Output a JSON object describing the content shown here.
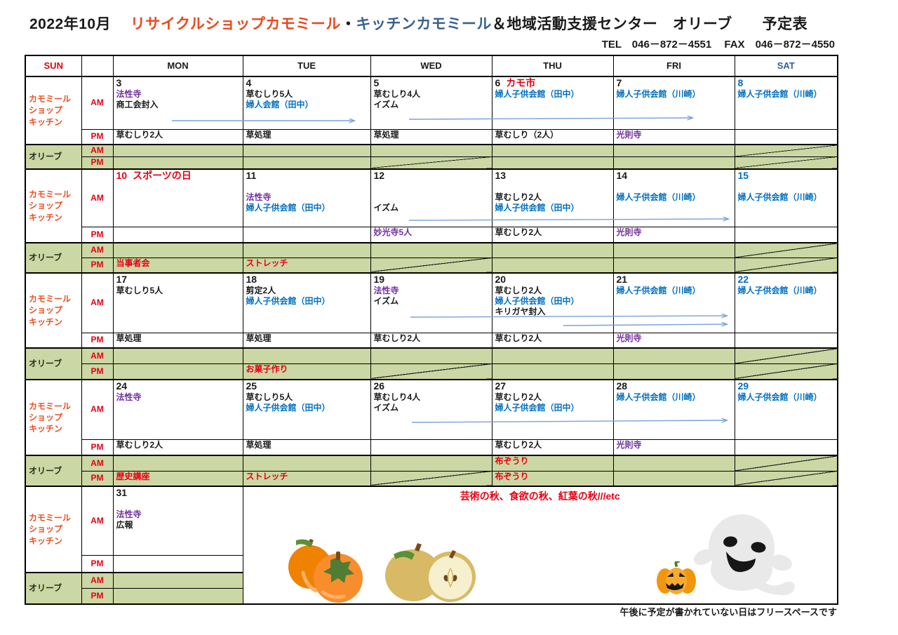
{
  "title": {
    "date": "2022年10月",
    "org_red": "リサイクルショップカモミール",
    "dot": "・",
    "org_blue": "キッチンカモミール",
    "org_rest": "＆地域活動支援センター　オリーブ　　予定表"
  },
  "contact": {
    "tel": "TEL　046－872－4551",
    "fax": "FAX　046－872－4550"
  },
  "header_days": [
    {
      "label": "SUN",
      "color": "h-red"
    },
    {
      "label": "MON",
      "color": ""
    },
    {
      "label": "TUE",
      "color": ""
    },
    {
      "label": "WED",
      "color": ""
    },
    {
      "label": "THU",
      "color": ""
    },
    {
      "label": "FRI",
      "color": ""
    },
    {
      "label": "SAT",
      "color": "h-blue"
    }
  ],
  "row_labels": {
    "camomile": [
      "カモミール",
      "ショップ",
      "キッチン"
    ],
    "olive": "オリーブ",
    "am": "AM",
    "pm": "PM"
  },
  "weeks": [
    {
      "am": [
        {
          "d": "3",
          "dc": "black",
          "lines": [
            {
              "t": "法性寺",
              "c": "purple"
            },
            {
              "t": "商工会封入",
              "c": "black"
            }
          ]
        },
        {
          "d": "4",
          "dc": "black",
          "lines": [
            {
              "t": "草むしり5人",
              "c": "black"
            },
            {
              "t": "婦人会館（田中）",
              "c": "blue"
            }
          ]
        },
        {
          "d": "5",
          "dc": "black",
          "lines": [
            {
              "t": "草むしり4人",
              "c": "black"
            },
            {
              "t": "イズム",
              "c": "black"
            }
          ]
        },
        {
          "d": "6",
          "dc": "black",
          "n": "カモ市",
          "nc": "red",
          "lines": [
            {
              "t": "婦人子供会館（田中）",
              "c": "blue"
            }
          ]
        },
        {
          "d": "7",
          "dc": "black",
          "lines": [
            {
              "t": "婦人子供会館（川崎）",
              "c": "blue"
            }
          ]
        },
        {
          "d": "8",
          "dc": "blue",
          "lines": [
            {
              "t": "婦人子供会館（川崎）",
              "c": "blue"
            }
          ]
        }
      ],
      "pm": [
        {
          "lines": [
            {
              "t": "草むしり2人",
              "c": "black"
            }
          ]
        },
        {
          "lines": [
            {
              "t": "草処理",
              "c": "black"
            }
          ]
        },
        {
          "lines": [
            {
              "t": "草処理",
              "c": "black"
            }
          ]
        },
        {
          "lines": [
            {
              "t": "草むしり（2人）",
              "c": "black"
            }
          ]
        },
        {
          "lines": [
            {
              "t": "光則寺",
              "c": "purple"
            }
          ]
        },
        {
          "lines": []
        }
      ],
      "olive_am": [
        {
          "lines": []
        },
        {
          "lines": []
        },
        {
          "lines": []
        },
        {
          "lines": []
        },
        {
          "lines": []
        },
        {
          "lines": [],
          "slash": true
        }
      ],
      "olive_pm": [
        {
          "lines": []
        },
        {
          "lines": []
        },
        {
          "lines": [],
          "slash": true
        },
        {
          "lines": []
        },
        {
          "lines": []
        },
        {
          "lines": [],
          "slash": true
        }
      ]
    },
    {
      "am": [
        {
          "d": "10",
          "dc": "red",
          "n": "スポーツの日",
          "nc": "red",
          "lines": []
        },
        {
          "d": "11",
          "dc": "black",
          "lines": [
            {
              "t": "",
              "c": "black"
            },
            {
              "t": "法性寺",
              "c": "purple"
            },
            {
              "t": "婦人子供会館（田中）",
              "c": "blue"
            }
          ]
        },
        {
          "d": "12",
          "dc": "black",
          "lines": [
            {
              "t": "",
              "c": "black"
            },
            {
              "t": "",
              "c": "black"
            },
            {
              "t": "イズム",
              "c": "black"
            }
          ]
        },
        {
          "d": "13",
          "dc": "black",
          "lines": [
            {
              "t": "",
              "c": "black"
            },
            {
              "t": "草むしり2人",
              "c": "black"
            },
            {
              "t": "婦人子供会館（田中）",
              "c": "blue"
            }
          ]
        },
        {
          "d": "14",
          "dc": "black",
          "lines": [
            {
              "t": "",
              "c": "black"
            },
            {
              "t": "婦人子供会館（川崎）",
              "c": "blue"
            }
          ]
        },
        {
          "d": "15",
          "dc": "blue",
          "lines": [
            {
              "t": "",
              "c": "black"
            },
            {
              "t": "婦人子供会館（川崎）",
              "c": "blue"
            }
          ]
        }
      ],
      "pm": [
        {
          "lines": []
        },
        {
          "lines": []
        },
        {
          "lines": [
            {
              "t": "妙光寺5人",
              "c": "purple"
            }
          ]
        },
        {
          "lines": [
            {
              "t": "草むしり2人",
              "c": "black"
            }
          ]
        },
        {
          "lines": [
            {
              "t": "光則寺",
              "c": "purple"
            }
          ]
        },
        {
          "lines": []
        }
      ],
      "olive_am": [
        {
          "lines": []
        },
        {
          "lines": []
        },
        {
          "lines": []
        },
        {
          "lines": []
        },
        {
          "lines": []
        },
        {
          "lines": [],
          "slash": true
        }
      ],
      "olive_pm": [
        {
          "lines": [
            {
              "t": "当事者会",
              "c": "red"
            }
          ]
        },
        {
          "lines": [
            {
              "t": "ストレッチ",
              "c": "red"
            }
          ]
        },
        {
          "lines": [],
          "slash": true
        },
        {
          "lines": []
        },
        {
          "lines": []
        },
        {
          "lines": [],
          "slash": true
        }
      ]
    },
    {
      "am": [
        {
          "d": "17",
          "dc": "black",
          "lines": [
            {
              "t": "草むしり5人",
              "c": "black"
            }
          ]
        },
        {
          "d": "18",
          "dc": "black",
          "lines": [
            {
              "t": "剪定2人",
              "c": "black"
            },
            {
              "t": "婦人子供会館（田中）",
              "c": "blue"
            }
          ]
        },
        {
          "d": "19",
          "dc": "black",
          "lines": [
            {
              "t": "法性寺",
              "c": "purple"
            },
            {
              "t": "イズム",
              "c": "black"
            }
          ]
        },
        {
          "d": "20",
          "dc": "black",
          "lines": [
            {
              "t": "草むしり2人",
              "c": "black"
            },
            {
              "t": "婦人子供会館（田中）",
              "c": "blue"
            },
            {
              "t": "キリガヤ封入",
              "c": "black"
            }
          ]
        },
        {
          "d": "21",
          "dc": "black",
          "lines": [
            {
              "t": "婦人子供会館（川崎）",
              "c": "blue"
            }
          ]
        },
        {
          "d": "22",
          "dc": "blue",
          "lines": [
            {
              "t": "婦人子供会館（川崎）",
              "c": "blue"
            }
          ]
        }
      ],
      "pm": [
        {
          "lines": [
            {
              "t": "草処理",
              "c": "black"
            }
          ]
        },
        {
          "lines": [
            {
              "t": "草処理",
              "c": "black"
            }
          ]
        },
        {
          "lines": [
            {
              "t": "草むしり2人",
              "c": "black"
            }
          ]
        },
        {
          "lines": [
            {
              "t": "草むしり2人",
              "c": "black"
            }
          ]
        },
        {
          "lines": [
            {
              "t": "光則寺",
              "c": "purple"
            }
          ]
        },
        {
          "lines": []
        }
      ],
      "olive_am": [
        {
          "lines": []
        },
        {
          "lines": []
        },
        {
          "lines": []
        },
        {
          "lines": []
        },
        {
          "lines": []
        },
        {
          "lines": [],
          "slash": true
        }
      ],
      "olive_pm": [
        {
          "lines": []
        },
        {
          "lines": [
            {
              "t": "お菓子作り",
              "c": "red"
            }
          ]
        },
        {
          "lines": [],
          "slash": true
        },
        {
          "lines": []
        },
        {
          "lines": []
        },
        {
          "lines": [],
          "slash": true
        }
      ]
    },
    {
      "am": [
        {
          "d": "24",
          "dc": "black",
          "lines": [
            {
              "t": "法性寺",
              "c": "purple"
            }
          ]
        },
        {
          "d": "25",
          "dc": "black",
          "lines": [
            {
              "t": "草むしり5人",
              "c": "black"
            },
            {
              "t": "婦人子供会館（田中）",
              "c": "blue"
            }
          ]
        },
        {
          "d": "26",
          "dc": "black",
          "lines": [
            {
              "t": "草むしり4人",
              "c": "black"
            },
            {
              "t": "イズム",
              "c": "black"
            }
          ]
        },
        {
          "d": "27",
          "dc": "black",
          "lines": [
            {
              "t": "草むしり2人",
              "c": "black"
            },
            {
              "t": "婦人子供会館（田中）",
              "c": "blue"
            }
          ]
        },
        {
          "d": "28",
          "dc": "black",
          "lines": [
            {
              "t": "婦人子供会館（川崎）",
              "c": "blue"
            }
          ]
        },
        {
          "d": "29",
          "dc": "blue",
          "lines": [
            {
              "t": "婦人子供会館（川崎）",
              "c": "blue"
            }
          ]
        }
      ],
      "pm": [
        {
          "lines": [
            {
              "t": "草むしり2人",
              "c": "black"
            }
          ]
        },
        {
          "lines": [
            {
              "t": "草処理",
              "c": "black"
            }
          ]
        },
        {
          "lines": []
        },
        {
          "lines": [
            {
              "t": "草むしり2人",
              "c": "black"
            }
          ]
        },
        {
          "lines": [
            {
              "t": "光則寺",
              "c": "purple"
            }
          ]
        },
        {
          "lines": []
        }
      ],
      "olive_am": [
        {
          "lines": []
        },
        {
          "lines": []
        },
        {
          "lines": []
        },
        {
          "lines": [
            {
              "t": "布ぞうり",
              "c": "red"
            }
          ]
        },
        {
          "lines": []
        },
        {
          "lines": [],
          "slash": true
        }
      ],
      "olive_pm": [
        {
          "lines": [
            {
              "t": "歴史講座",
              "c": "red"
            }
          ]
        },
        {
          "lines": [
            {
              "t": "ストレッチ",
              "c": "red"
            }
          ]
        },
        {
          "lines": [],
          "slash": true
        },
        {
          "lines": [
            {
              "t": "布ぞうり",
              "c": "red"
            }
          ]
        },
        {
          "lines": []
        },
        {
          "lines": [],
          "slash": true
        }
      ]
    },
    {
      "last": true,
      "am": [
        {
          "d": "31",
          "dc": "black",
          "lines": [
            {
              "t": "",
              "c": "black"
            },
            {
              "t": "法性寺",
              "c": "purple"
            },
            {
              "t": "広報",
              "c": "black"
            }
          ]
        }
      ],
      "pm": [
        {
          "lines": []
        }
      ],
      "olive_am": [
        {
          "lines": []
        }
      ],
      "olive_pm": [
        {
          "lines": []
        }
      ]
    }
  ],
  "autumn_message": "芸術の秋、食欲の秋、紅葉の秋///etc",
  "footer_note": "午後に予定が書かれていない日はフリースペースです",
  "colors": {
    "accent_red": "#e60012",
    "event_blue": "#0070c0",
    "temple_purple": "#7030a0",
    "olive_green_bg": "#cbd7a4",
    "camomile_orange": "#ea4f21",
    "arrow_blue": "#7ba2d4"
  }
}
